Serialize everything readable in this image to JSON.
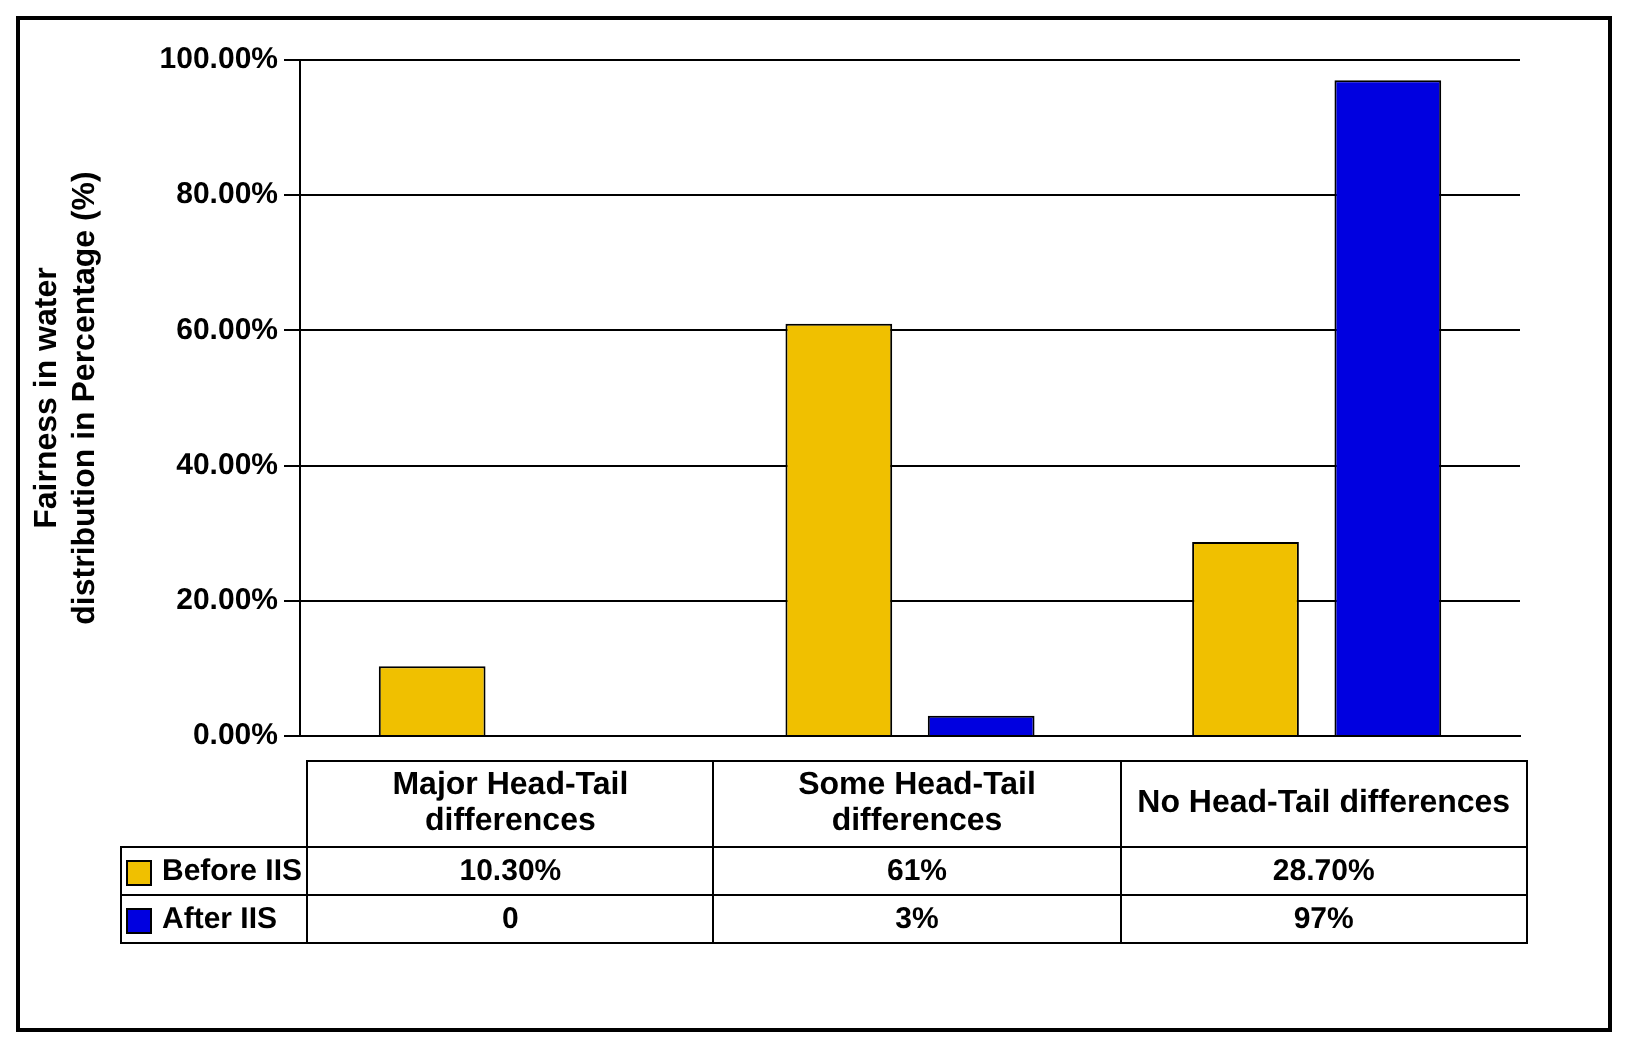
{
  "chart_data": {
    "type": "bar",
    "ylabel": "Fairness in water distribution in Percentage (%)",
    "categories": [
      "Major Head-Tail differences",
      "Some Head-Tail differences",
      "No Head-Tail differences"
    ],
    "series": [
      {
        "name": "Before IIS",
        "color": "#f0c000",
        "values": [
          10.3,
          61,
          28.7
        ],
        "value_labels": [
          "10.30%",
          "61%",
          "28.70%"
        ]
      },
      {
        "name": "After IIS",
        "color": "#0000e0",
        "values": [
          0,
          3,
          97
        ],
        "value_labels": [
          "0",
          "3%",
          "97%"
        ]
      }
    ],
    "ylim": [
      0,
      100
    ],
    "yticks": [
      {
        "value": 0,
        "label": "0.00%"
      },
      {
        "value": 20,
        "label": "20.00%"
      },
      {
        "value": 40,
        "label": "40.00%"
      },
      {
        "value": 60,
        "label": "60.00%"
      },
      {
        "value": 80,
        "label": "80.00%"
      },
      {
        "value": 100,
        "label": "100.00%"
      }
    ],
    "grid": "y",
    "legend": "bottom"
  }
}
